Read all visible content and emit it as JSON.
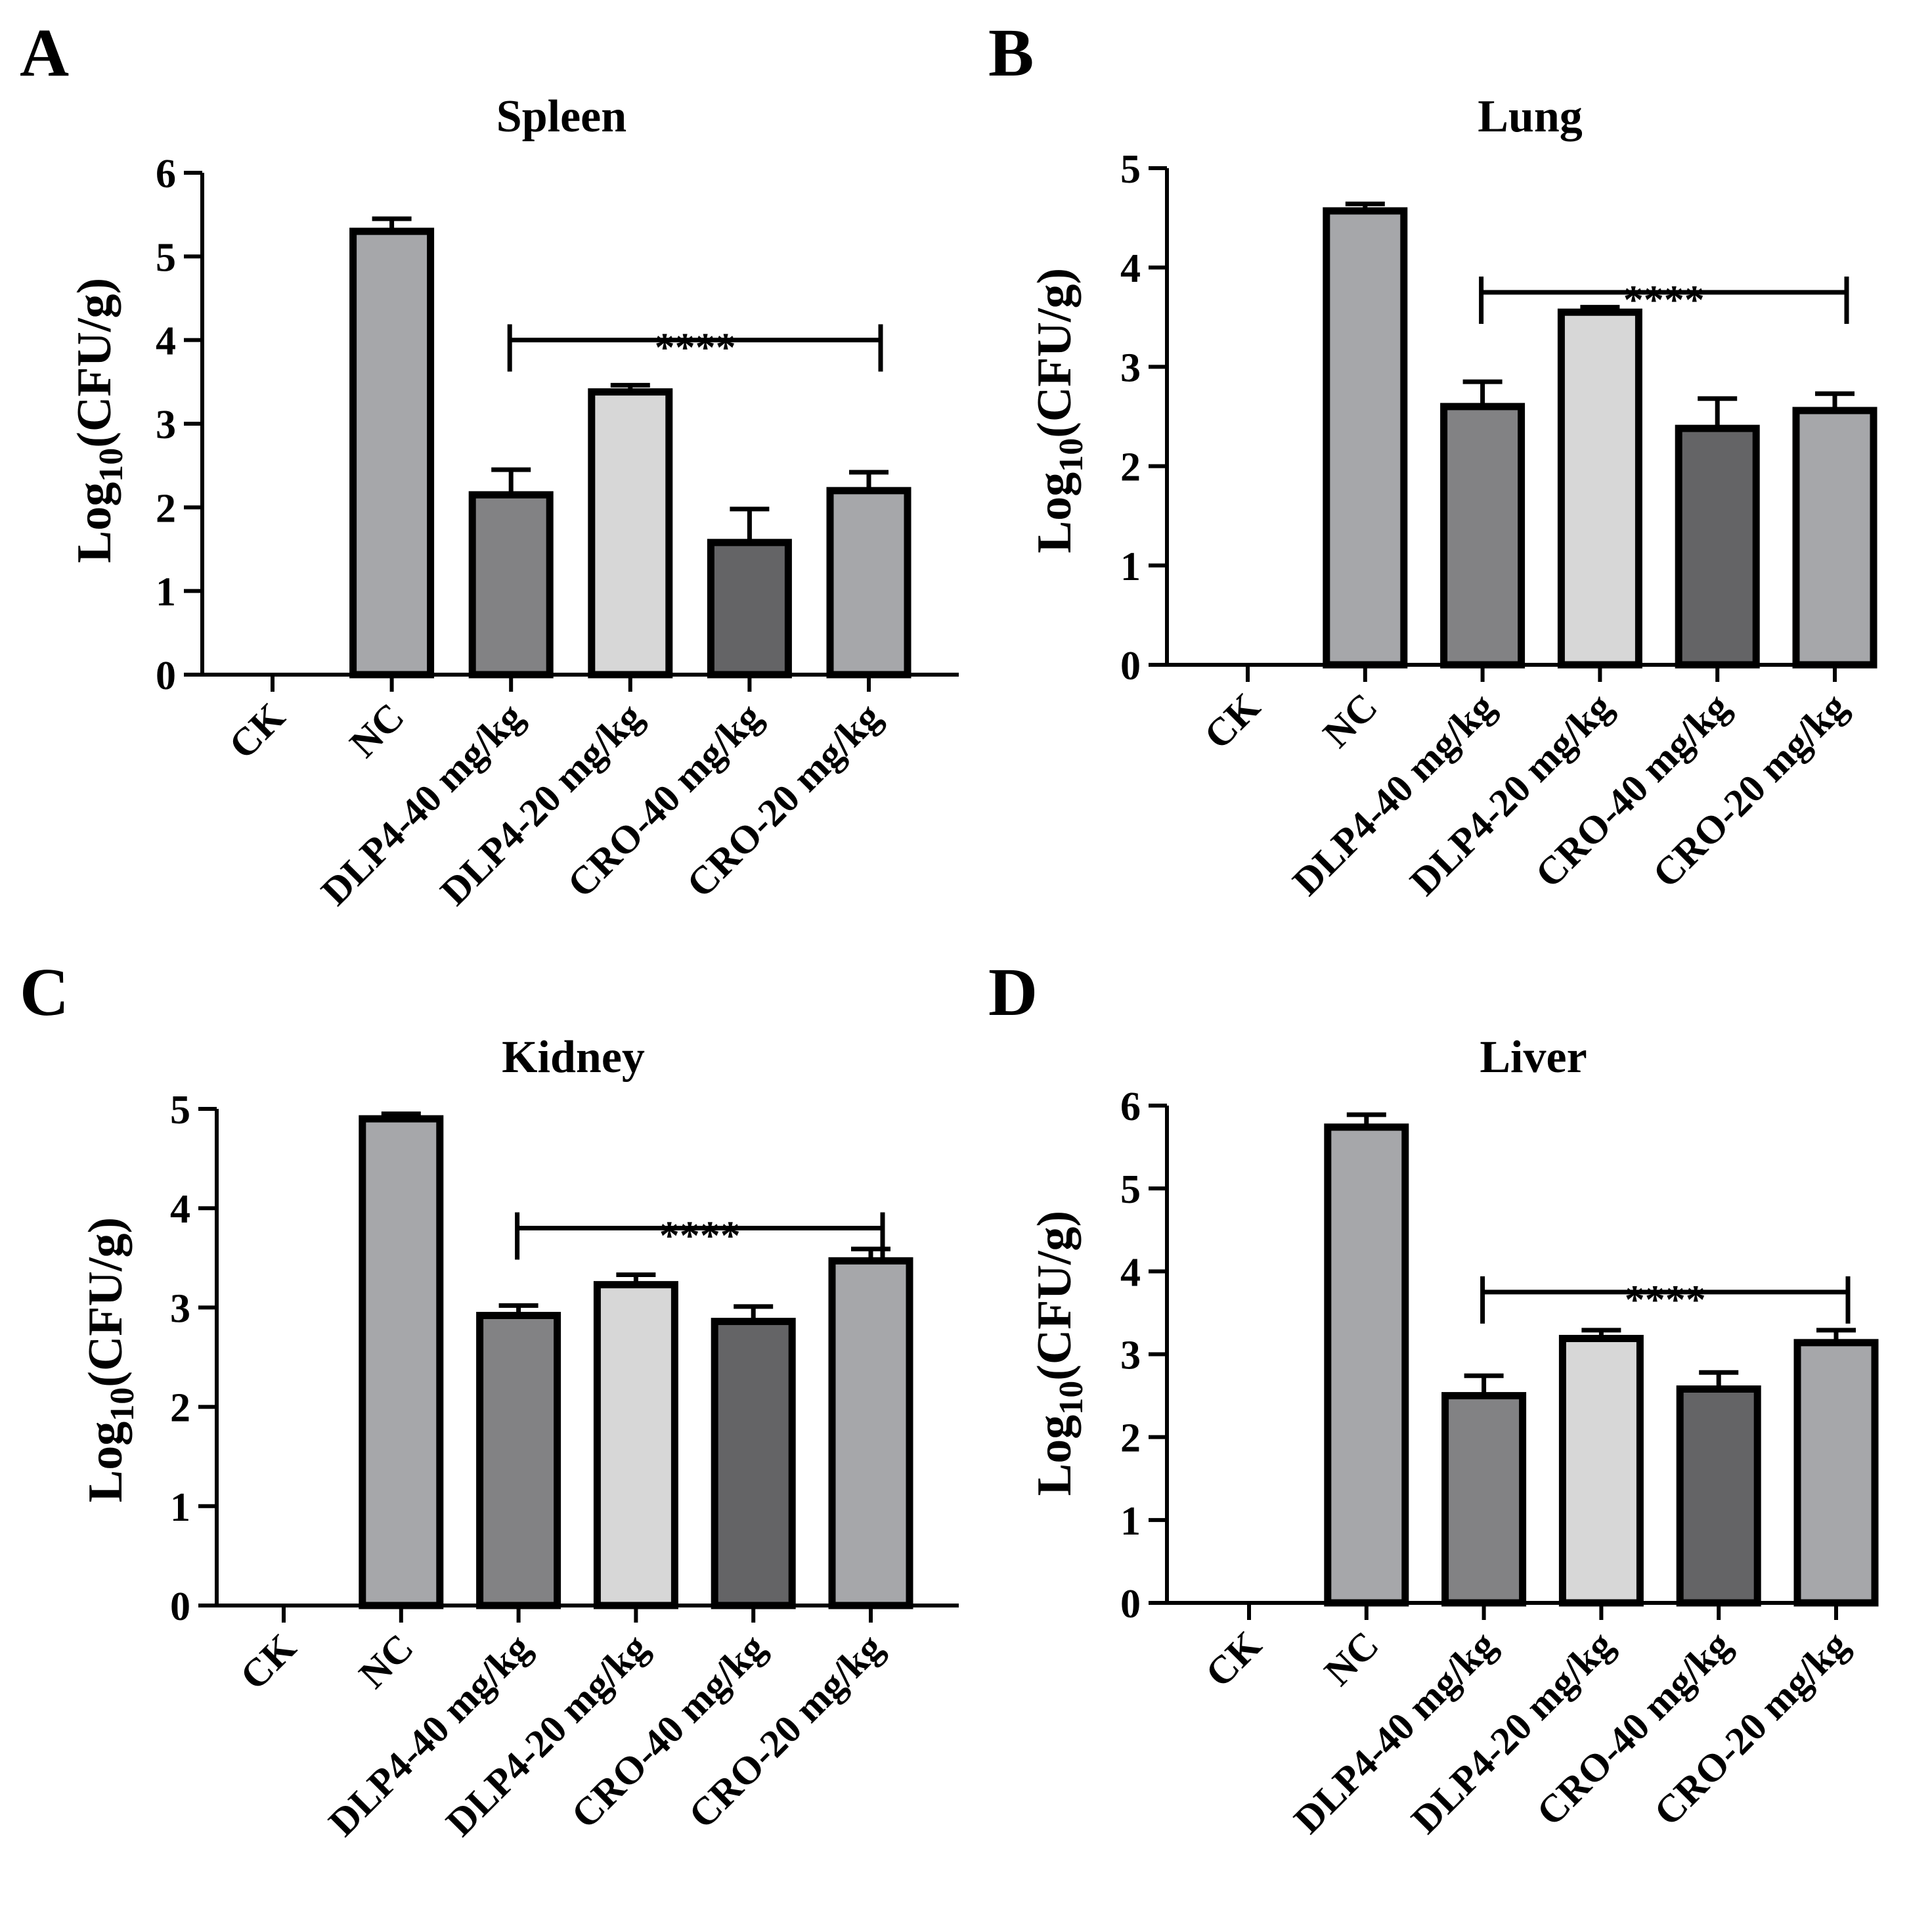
{
  "figure": {
    "categories": [
      "CK",
      "NC",
      "DLP4-40 mg/kg",
      "DLP4-20 mg/kg",
      "CRO-40 mg/kg",
      "CRO-20 mg/kg"
    ],
    "bar_colors": [
      "#ffffff",
      "#a6a7aa",
      "#828284",
      "#d7d7d7",
      "#646466",
      "#a6a7aa"
    ],
    "axis_color": "#000000"
  },
  "chart_data": [
    {
      "panel": "A",
      "type": "bar",
      "title": "Spleen",
      "ylabel_main": "Log",
      "ylabel_sub": "10",
      "ylabel_unit": "(CFU/g)",
      "categories": [
        "CK",
        "NC",
        "DLP4-40 mg/kg",
        "DLP4-20 mg/kg",
        "CRO-40 mg/kg",
        "CRO-20 mg/kg"
      ],
      "values": [
        0,
        5.3,
        2.15,
        3.38,
        1.58,
        2.2
      ],
      "errors": [
        0,
        0.15,
        0.3,
        0.08,
        0.4,
        0.22
      ],
      "ylim": [
        0,
        6
      ],
      "yticks": [
        0,
        1,
        2,
        3,
        4,
        5,
        6
      ],
      "significance": {
        "label": "****",
        "from": "DLP4-40 mg/kg",
        "to": "CRO-20 mg/kg",
        "y": 4.0
      }
    },
    {
      "panel": "B",
      "type": "bar",
      "title": "Lung",
      "ylabel_main": "Log",
      "ylabel_sub": "10",
      "ylabel_unit": "(CFU/g)",
      "categories": [
        "CK",
        "NC",
        "DLP4-40 mg/kg",
        "DLP4-20 mg/kg",
        "CRO-40 mg/kg",
        "CRO-20 mg/kg"
      ],
      "values": [
        0,
        4.57,
        2.6,
        3.55,
        2.38,
        2.56
      ],
      "errors": [
        0,
        0.07,
        0.25,
        0.05,
        0.3,
        0.17
      ],
      "ylim": [
        0,
        5
      ],
      "yticks": [
        0,
        1,
        2,
        3,
        4,
        5
      ],
      "significance": {
        "label": "****",
        "from": "DLP4-40 mg/kg",
        "to": "CRO-20 mg/kg",
        "y": 3.75
      }
    },
    {
      "panel": "C",
      "type": "bar",
      "title": "Kidney",
      "ylabel_main": "Log",
      "ylabel_sub": "10",
      "ylabel_unit": "(CFU/g)",
      "categories": [
        "CK",
        "NC",
        "DLP4-40 mg/kg",
        "DLP4-20 mg/kg",
        "CRO-40 mg/kg",
        "CRO-20 mg/kg"
      ],
      "values": [
        0,
        4.9,
        2.92,
        3.23,
        2.86,
        3.47
      ],
      "errors": [
        0,
        0.05,
        0.1,
        0.1,
        0.15,
        0.12
      ],
      "ylim": [
        0,
        5
      ],
      "yticks": [
        0,
        1,
        2,
        3,
        4,
        5
      ],
      "significance": {
        "label": "****",
        "from": "DLP4-40 mg/kg",
        "to": "CRO-20 mg/kg",
        "y": 3.8
      }
    },
    {
      "panel": "D",
      "type": "bar",
      "title": "Liver",
      "ylabel_main": "Log",
      "ylabel_sub": "10",
      "ylabel_unit": "(CFU/g)",
      "categories": [
        "CK",
        "NC",
        "DLP4-40 mg/kg",
        "DLP4-20 mg/kg",
        "CRO-40 mg/kg",
        "CRO-20 mg/kg"
      ],
      "values": [
        0,
        5.74,
        2.5,
        3.19,
        2.58,
        3.14
      ],
      "errors": [
        0,
        0.15,
        0.24,
        0.1,
        0.2,
        0.15
      ],
      "ylim": [
        0,
        6
      ],
      "yticks": [
        0,
        1,
        2,
        3,
        4,
        5,
        6
      ],
      "significance": {
        "label": "****",
        "from": "DLP4-40 mg/kg",
        "to": "CRO-20 mg/kg",
        "y": 3.75
      }
    }
  ]
}
